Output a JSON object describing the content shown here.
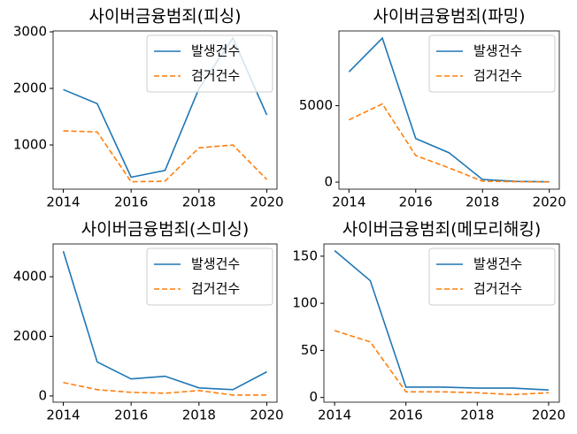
{
  "chart_data": [
    {
      "type": "line",
      "title": "사이버금융범죄(피싱)",
      "x": [
        2014,
        2015,
        2016,
        2017,
        2018,
        2019,
        2020
      ],
      "series": [
        {
          "name": "발생건수",
          "color": "#1f77b4",
          "linestyle": "solid",
          "values": [
            1980,
            1730,
            430,
            550,
            2000,
            2890,
            1530
          ]
        },
        {
          "name": "검거건수",
          "color": "#ff7f0e",
          "linestyle": "dashed",
          "values": [
            1250,
            1230,
            350,
            360,
            950,
            1000,
            390
          ]
        }
      ],
      "xlim": [
        2013.7,
        2020.3
      ],
      "xticks": [
        2014,
        2016,
        2018,
        2020
      ],
      "ylim": [
        219,
        3016
      ],
      "yticks": [
        1000,
        2000,
        3000
      ],
      "legend": "upper right"
    },
    {
      "type": "line",
      "title": "사이버금융범죄(파밍)",
      "x": [
        2014,
        2015,
        2016,
        2017,
        2018,
        2019,
        2020
      ],
      "series": [
        {
          "name": "발생건수",
          "color": "#1f77b4",
          "linestyle": "solid",
          "values": [
            7210,
            9420,
            2850,
            1920,
            170,
            50,
            20
          ]
        },
        {
          "name": "검거건수",
          "color": "#ff7f0e",
          "linestyle": "dashed",
          "values": [
            4070,
            5120,
            1740,
            930,
            60,
            30,
            10
          ]
        }
      ],
      "xlim": [
        2013.7,
        2020.3
      ],
      "xticks": [
        2014,
        2016,
        2018,
        2020
      ],
      "ylim": [
        -460,
        9890
      ],
      "yticks": [
        0,
        5000
      ],
      "legend": "upper right"
    },
    {
      "type": "line",
      "title": "사이버금융범죄(스미싱)",
      "x": [
        2014,
        2015,
        2016,
        2017,
        2018,
        2019,
        2020
      ],
      "series": [
        {
          "name": "발생건수",
          "color": "#1f77b4",
          "linestyle": "solid",
          "values": [
            4860,
            1140,
            570,
            660,
            270,
            210,
            810
          ]
        },
        {
          "name": "검거건수",
          "color": "#ff7f0e",
          "linestyle": "dashed",
          "values": [
            450,
            210,
            120,
            90,
            180,
            30,
            30
          ]
        }
      ],
      "xlim": [
        2013.7,
        2020.3
      ],
      "xticks": [
        2014,
        2016,
        2018,
        2020
      ],
      "ylim": [
        -210,
        5100
      ],
      "yticks": [
        0,
        2000,
        4000
      ],
      "legend": "upper right"
    },
    {
      "type": "line",
      "title": "사이버금융범죄(메모리해킹)",
      "x": [
        2014,
        2015,
        2016,
        2017,
        2018,
        2019,
        2020
      ],
      "series": [
        {
          "name": "발생건수",
          "color": "#1f77b4",
          "linestyle": "solid",
          "values": [
            156,
            124,
            11,
            11,
            10,
            10,
            8
          ]
        },
        {
          "name": "검거건수",
          "color": "#ff7f0e",
          "linestyle": "dashed",
          "values": [
            71,
            59,
            6,
            6,
            5,
            3,
            5
          ]
        }
      ],
      "xlim": [
        2013.7,
        2020.3
      ],
      "xticks": [
        2014,
        2016,
        2018,
        2020
      ],
      "ylim": [
        -5,
        163
      ],
      "yticks": [
        0,
        50,
        100,
        150
      ],
      "legend": "upper right"
    }
  ]
}
